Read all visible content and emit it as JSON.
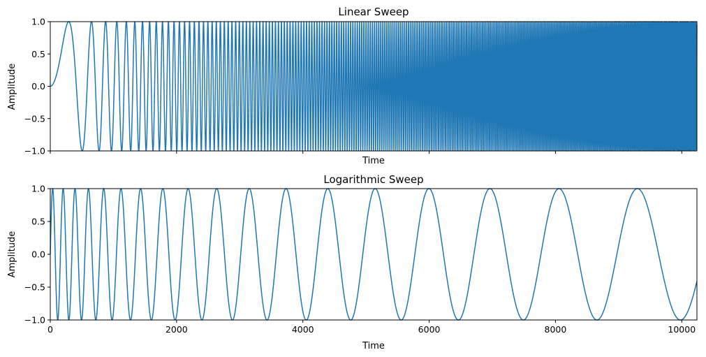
{
  "colors": {
    "line": "#1f77b4",
    "axes": "#000000",
    "background": "#ffffff"
  },
  "chart_data": [
    {
      "type": "line",
      "title": "Linear Sweep",
      "xlabel": "Time",
      "ylabel": "Amplitude",
      "xlim": [
        0,
        10240
      ],
      "ylim": [
        -1.0,
        1.0
      ],
      "x_ticks": [
        0,
        2000,
        4000,
        6000,
        8000,
        10000
      ],
      "x_tick_labels_shown": false,
      "y_ticks": [
        -1.0,
        -0.5,
        0.0,
        0.5,
        1.0
      ],
      "y_tick_labels": [
        "−1.0",
        "−0.5",
        "0.0",
        "0.5",
        "1.0"
      ],
      "grid": false,
      "series": [
        {
          "signal": "sine",
          "sweep": "linear",
          "start_phase_rad": 0,
          "freq_start": 0.0,
          "freq_end": 0.06,
          "n_points": 10240
        }
      ]
    },
    {
      "type": "line",
      "title": "Logarithmic Sweep",
      "xlabel": "Time",
      "ylabel": "Amplitude",
      "xlim": [
        0,
        10240
      ],
      "ylim": [
        -1.0,
        1.0
      ],
      "x_ticks": [
        0,
        2000,
        4000,
        6000,
        8000,
        10000
      ],
      "x_tick_labels": [
        "0",
        "2000",
        "4000",
        "6000",
        "8000",
        "10000"
      ],
      "y_ticks": [
        -1.0,
        -0.5,
        0.0,
        0.5,
        1.0
      ],
      "y_tick_labels": [
        "−1.0",
        "−0.5",
        "0.0",
        "0.5",
        "1.0"
      ],
      "grid": false,
      "series": [
        {
          "signal": "sine",
          "sweep": "logarithmic",
          "start_phase_rad": 0,
          "phase_law": "A*ln(1+t/T)",
          "A": 7.94,
          "T": 1195,
          "n_points": 10240
        }
      ]
    }
  ]
}
